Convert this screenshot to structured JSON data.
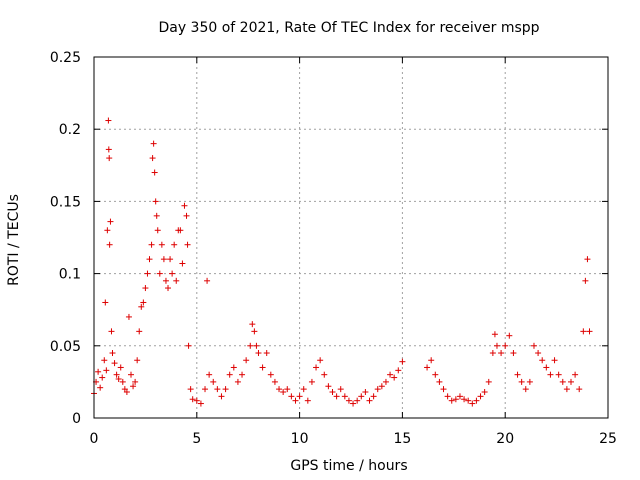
{
  "chart_data": {
    "type": "scatter",
    "title": "Day 350 of 2021, Rate Of TEC Index for receiver mspp",
    "xlabel": "GPS time / hours",
    "ylabel": "ROTI / TECUs",
    "xlim": [
      0,
      25
    ],
    "ylim": [
      0,
      0.25
    ],
    "x_ticks": [
      0,
      5,
      10,
      15,
      20,
      25
    ],
    "y_ticks": [
      0,
      0.05,
      0.1,
      0.15,
      0.2,
      0.25
    ],
    "x_tick_labels": [
      "0",
      "5",
      "10",
      "15",
      "20",
      "25"
    ],
    "y_tick_labels": [
      "0",
      "0.05",
      "0.1",
      "0.15",
      "0.2",
      "0.25"
    ],
    "grid": true,
    "marker": "+",
    "marker_color": "#dd0000",
    "series": [
      {
        "name": "ROTI",
        "points": [
          [
            0.0,
            0.017
          ],
          [
            0.1,
            0.025
          ],
          [
            0.2,
            0.032
          ],
          [
            0.3,
            0.021
          ],
          [
            0.4,
            0.028
          ],
          [
            0.5,
            0.04
          ],
          [
            0.55,
            0.08
          ],
          [
            0.6,
            0.033
          ],
          [
            0.65,
            0.13
          ],
          [
            0.7,
            0.206
          ],
          [
            0.72,
            0.186
          ],
          [
            0.74,
            0.18
          ],
          [
            0.76,
            0.12
          ],
          [
            0.8,
            0.136
          ],
          [
            0.85,
            0.06
          ],
          [
            0.9,
            0.045
          ],
          [
            1.0,
            0.038
          ],
          [
            1.1,
            0.03
          ],
          [
            1.2,
            0.027
          ],
          [
            1.3,
            0.035
          ],
          [
            1.4,
            0.025
          ],
          [
            1.5,
            0.02
          ],
          [
            1.6,
            0.018
          ],
          [
            1.7,
            0.07
          ],
          [
            1.8,
            0.03
          ],
          [
            1.9,
            0.022
          ],
          [
            2.0,
            0.025
          ],
          [
            2.1,
            0.04
          ],
          [
            2.2,
            0.06
          ],
          [
            2.3,
            0.077
          ],
          [
            2.4,
            0.08
          ],
          [
            2.5,
            0.09
          ],
          [
            2.6,
            0.1
          ],
          [
            2.7,
            0.11
          ],
          [
            2.8,
            0.12
          ],
          [
            2.85,
            0.18
          ],
          [
            2.9,
            0.19
          ],
          [
            2.95,
            0.17
          ],
          [
            3.0,
            0.15
          ],
          [
            3.05,
            0.14
          ],
          [
            3.1,
            0.13
          ],
          [
            3.2,
            0.1
          ],
          [
            3.3,
            0.12
          ],
          [
            3.4,
            0.11
          ],
          [
            3.5,
            0.095
          ],
          [
            3.6,
            0.09
          ],
          [
            3.7,
            0.11
          ],
          [
            3.8,
            0.1
          ],
          [
            3.9,
            0.12
          ],
          [
            4.0,
            0.095
          ],
          [
            4.1,
            0.13
          ],
          [
            4.2,
            0.13
          ],
          [
            4.3,
            0.107
          ],
          [
            4.4,
            0.147
          ],
          [
            4.5,
            0.14
          ],
          [
            4.55,
            0.12
          ],
          [
            4.6,
            0.05
          ],
          [
            4.7,
            0.02
          ],
          [
            4.8,
            0.013
          ],
          [
            5.0,
            0.012
          ],
          [
            5.2,
            0.01
          ],
          [
            5.4,
            0.02
          ],
          [
            5.5,
            0.095
          ],
          [
            5.6,
            0.03
          ],
          [
            5.8,
            0.025
          ],
          [
            6.0,
            0.02
          ],
          [
            6.2,
            0.015
          ],
          [
            6.4,
            0.02
          ],
          [
            6.6,
            0.03
          ],
          [
            6.8,
            0.035
          ],
          [
            7.0,
            0.025
          ],
          [
            7.2,
            0.03
          ],
          [
            7.4,
            0.04
          ],
          [
            7.6,
            0.05
          ],
          [
            7.7,
            0.065
          ],
          [
            7.8,
            0.06
          ],
          [
            7.9,
            0.05
          ],
          [
            8.0,
            0.045
          ],
          [
            8.2,
            0.035
          ],
          [
            8.4,
            0.045
          ],
          [
            8.6,
            0.03
          ],
          [
            8.8,
            0.025
          ],
          [
            9.0,
            0.02
          ],
          [
            9.2,
            0.018
          ],
          [
            9.4,
            0.02
          ],
          [
            9.6,
            0.015
          ],
          [
            9.8,
            0.012
          ],
          [
            10.0,
            0.015
          ],
          [
            10.2,
            0.02
          ],
          [
            10.4,
            0.012
          ],
          [
            10.6,
            0.025
          ],
          [
            10.8,
            0.035
          ],
          [
            11.0,
            0.04
          ],
          [
            11.2,
            0.03
          ],
          [
            11.4,
            0.022
          ],
          [
            11.6,
            0.018
          ],
          [
            11.8,
            0.015
          ],
          [
            12.0,
            0.02
          ],
          [
            12.2,
            0.015
          ],
          [
            12.4,
            0.012
          ],
          [
            12.6,
            0.01
          ],
          [
            12.8,
            0.012
          ],
          [
            13.0,
            0.015
          ],
          [
            13.2,
            0.018
          ],
          [
            13.4,
            0.012
          ],
          [
            13.6,
            0.015
          ],
          [
            13.8,
            0.02
          ],
          [
            14.0,
            0.022
          ],
          [
            14.2,
            0.025
          ],
          [
            14.4,
            0.03
          ],
          [
            14.6,
            0.028
          ],
          [
            14.8,
            0.033
          ],
          [
            15.0,
            0.039
          ],
          [
            16.2,
            0.035
          ],
          [
            16.4,
            0.04
          ],
          [
            16.6,
            0.03
          ],
          [
            16.8,
            0.025
          ],
          [
            17.0,
            0.02
          ],
          [
            17.2,
            0.015
          ],
          [
            17.4,
            0.012
          ],
          [
            17.6,
            0.013
          ],
          [
            17.8,
            0.015
          ],
          [
            18.0,
            0.013
          ],
          [
            18.2,
            0.012
          ],
          [
            18.4,
            0.01
          ],
          [
            18.6,
            0.012
          ],
          [
            18.8,
            0.015
          ],
          [
            19.0,
            0.018
          ],
          [
            19.2,
            0.025
          ],
          [
            19.4,
            0.045
          ],
          [
            19.5,
            0.058
          ],
          [
            19.6,
            0.05
          ],
          [
            19.8,
            0.045
          ],
          [
            20.0,
            0.05
          ],
          [
            20.2,
            0.057
          ],
          [
            20.4,
            0.045
          ],
          [
            20.6,
            0.03
          ],
          [
            20.8,
            0.025
          ],
          [
            21.0,
            0.02
          ],
          [
            21.2,
            0.025
          ],
          [
            21.4,
            0.05
          ],
          [
            21.6,
            0.045
          ],
          [
            21.8,
            0.04
          ],
          [
            22.0,
            0.035
          ],
          [
            22.2,
            0.03
          ],
          [
            22.4,
            0.04
          ],
          [
            22.6,
            0.03
          ],
          [
            22.8,
            0.025
          ],
          [
            23.0,
            0.02
          ],
          [
            23.2,
            0.025
          ],
          [
            23.4,
            0.03
          ],
          [
            23.6,
            0.02
          ],
          [
            23.8,
            0.06
          ],
          [
            23.9,
            0.095
          ],
          [
            24.0,
            0.11
          ],
          [
            24.1,
            0.06
          ]
        ]
      }
    ]
  }
}
